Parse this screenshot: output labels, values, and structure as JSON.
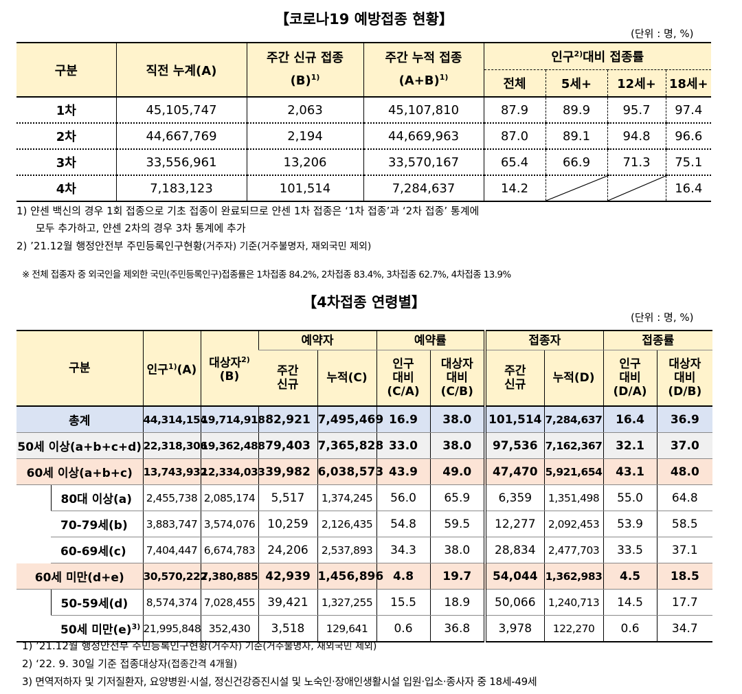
{
  "title1": "【코로나19 예방접종 현황】",
  "unit1": "(단위 : 명, %)",
  "t1": {
    "h_gubun": "구분",
    "h_prev": "직전 누계(A)",
    "h_new_l1": "주간 신규 접종",
    "h_new_l2": "(B)",
    "h_new_sup": "1)",
    "h_cum_l1": "주간 누적 접종",
    "h_cum_l2": "(A+B)",
    "h_cum_sup": "1)",
    "h_rate_pre": "인구",
    "h_rate_sup": "2)",
    "h_rate_post": "대비 접종률",
    "h_all": "전체",
    "h_5": "5세+",
    "h_12": "12세+",
    "h_18": "18세+",
    "rows": [
      {
        "label": "1차",
        "prev": "45,105,747",
        "new": "2,063",
        "cum": "45,107,810",
        "all": "87.9",
        "r5": "89.9",
        "r12": "95.7",
        "r18": "97.4"
      },
      {
        "label": "2차",
        "prev": "44,667,769",
        "new": "2,194",
        "cum": "44,669,963",
        "all": "87.0",
        "r5": "89.1",
        "r12": "94.8",
        "r18": "96.6"
      },
      {
        "label": "3차",
        "prev": "33,556,961",
        "new": "13,206",
        "cum": "33,570,167",
        "all": "65.4",
        "r5": "66.9",
        "r12": "71.3",
        "r18": "75.1"
      },
      {
        "label": "4차",
        "prev": "7,183,123",
        "new": "101,514",
        "cum": "7,284,637",
        "all": "14.2",
        "r5": "",
        "r12": "",
        "r18": "16.4"
      }
    ]
  },
  "notes1": {
    "n1a": "1) 얀센 백신의 경우 1회 접종으로 기초 접종이 완료되므로 얀센 1차 접종은 ‘1차 접종’과 ‘2차 접종’ 통계에",
    "n1b": "모두 추가하고, 얀센 2차의 경우 3차 통계에 추가",
    "n2a": "2) ’21.12월 행정안전부 주민등록인구현황",
    "n2b": "(거주자) 기준(거주불명자, 재외국민 제외)",
    "n3": "※ 전체 접종자 중 외국인을 제외한 국민(주민등록인구)접종률은 1차접종 84.2%, 2차접종 83.4%, 3차접종 62.7%, 4차접종 13.9%"
  },
  "title2": "【4차접종 연령별】",
  "unit2": "(단위 : 명, %)",
  "t2": {
    "h_gubun": "구분",
    "h_pop": "인구",
    "h_pop_sup": "1)",
    "h_pop_post": "(A)",
    "h_tgt": "대상자",
    "h_tgt_sup": "2)",
    "h_tgt_post": "(B)",
    "h_res": "예약자",
    "h_resrate": "예약률",
    "h_vac": "접종자",
    "h_vacrate": "접종률",
    "h_week_l1": "주간",
    "h_week_l2": "신규",
    "h_cum_c": "누적(C)",
    "h_cum_d": "누적(D)",
    "h_popr_l1": "인구",
    "h_popr_l2": "대비",
    "h_ca": "(C/A)",
    "h_da": "(D/A)",
    "h_tgtr_l1": "대상자",
    "h_tgtr_l2": "대비",
    "h_cb": "(C/B)",
    "h_db": "(D/B)",
    "rows": [
      {
        "label": "총계",
        "pop": "44,314,154",
        "tgt": "19,714,918",
        "rw": "82,921",
        "rc": "7,495,469",
        "rca": "16.9",
        "rcb": "38.0",
        "vw": "101,514",
        "vc": "7,284,637",
        "vda": "16.4",
        "vdb": "36.9"
      },
      {
        "label": "50세 이상(a+b+c+d)",
        "pop": "22,318,306",
        "tgt": "19,362,488",
        "rw": "79,403",
        "rc": "7,365,828",
        "rca": "33.0",
        "rcb": "38.0",
        "vw": "97,536",
        "vc": "7,162,367",
        "vda": "32.1",
        "vdb": "37.0"
      },
      {
        "label": "60세 이상(a+b+c)",
        "pop": "13,743,932",
        "tgt": "12,334,033",
        "rw": "39,982",
        "rc": "6,038,573",
        "rca": "43.9",
        "rcb": "49.0",
        "vw": "47,470",
        "vc": "5,921,654",
        "vda": "43.1",
        "vdb": "48.0"
      },
      {
        "label": "80대 이상(a)",
        "pop": "2,455,738",
        "tgt": "2,085,174",
        "rw": "5,517",
        "rc": "1,374,245",
        "rca": "56.0",
        "rcb": "65.9",
        "vw": "6,359",
        "vc": "1,351,498",
        "vda": "55.0",
        "vdb": "64.8"
      },
      {
        "label": "70-79세(b)",
        "pop": "3,883,747",
        "tgt": "3,574,076",
        "rw": "10,259",
        "rc": "2,126,435",
        "rca": "54.8",
        "rcb": "59.5",
        "vw": "12,277",
        "vc": "2,092,453",
        "vda": "53.9",
        "vdb": "58.5"
      },
      {
        "label": "60-69세(c)",
        "pop": "7,404,447",
        "tgt": "6,674,783",
        "rw": "24,206",
        "rc": "2,537,893",
        "rca": "34.3",
        "rcb": "38.0",
        "vw": "28,834",
        "vc": "2,477,703",
        "vda": "33.5",
        "vdb": "37.1"
      },
      {
        "label": "60세 미만(d+e)",
        "pop": "30,570,222",
        "tgt": "7,380,885",
        "rw": "42,939",
        "rc": "1,456,896",
        "rca": "4.8",
        "rcb": "19.7",
        "vw": "54,044",
        "vc": "1,362,983",
        "vda": "4.5",
        "vdb": "18.5"
      },
      {
        "label": "50-59세(d)",
        "pop": "8,574,374",
        "tgt": "7,028,455",
        "rw": "39,421",
        "rc": "1,327,255",
        "rca": "15.5",
        "rcb": "18.9",
        "vw": "50,066",
        "vc": "1,240,713",
        "vda": "14.5",
        "vdb": "17.7"
      },
      {
        "label": "50세 미만(e)",
        "label_sup": "3)",
        "pop": "21,995,848",
        "tgt": "352,430",
        "rw": "3,518",
        "rc": "129,641",
        "rca": "0.6",
        "rcb": "36.8",
        "vw": "3,978",
        "vc": "122,270",
        "vda": "0.6",
        "vdb": "34.7"
      }
    ]
  },
  "notes2": {
    "n1a": "1) ’21.12월 행정안전부 주민등록인구현황",
    "n1b": "(거주자) 기준(거주불명자, 재외국민 제외)",
    "n2a": "2) ‘22. 9. 30일 기준 접종대상자",
    "n2b": "(접종간격 4개월)",
    "n3": "3) 면역저하자 및 기저질환자, 요양병원·시설, 정신건강증진시설 및 노숙인·장애인생활시설 입원·입소·종사자 중 18세-49세"
  }
}
